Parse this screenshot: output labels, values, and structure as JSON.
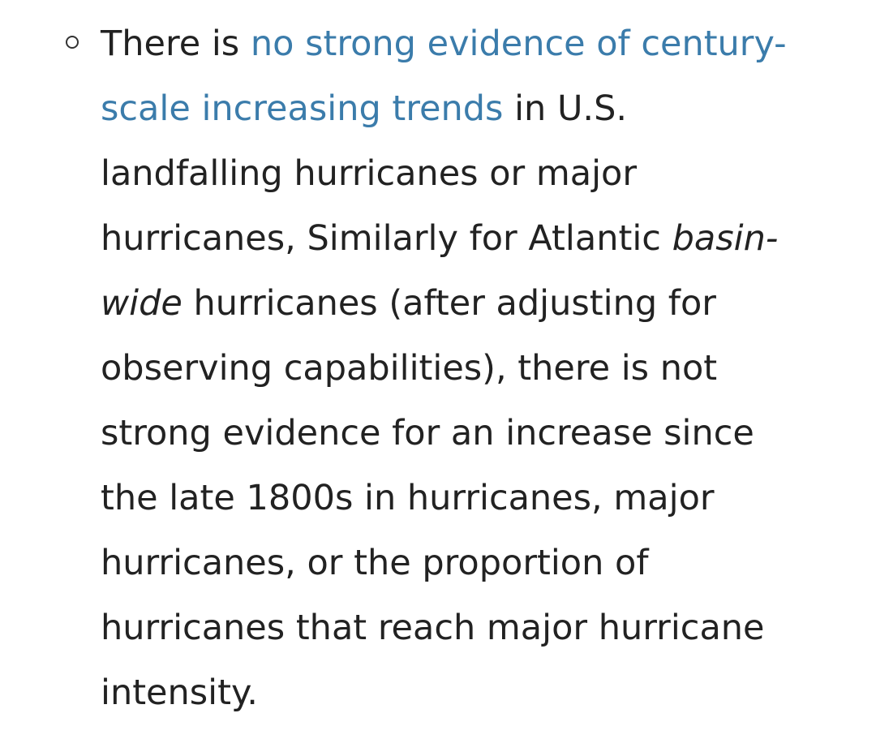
{
  "bullet": {
    "lines": [
      [
        {
          "text": "There is ",
          "kind": "plain"
        },
        {
          "text": "no strong evidence of century-",
          "kind": "link"
        }
      ],
      [
        {
          "text": "scale increasing trends",
          "kind": "link"
        },
        {
          "text": " in U.S.",
          "kind": "plain"
        }
      ],
      [
        {
          "text": "landfalling hurricanes or major",
          "kind": "plain"
        }
      ],
      [
        {
          "text": "hurricanes, Similarly for Atlantic ",
          "kind": "plain"
        },
        {
          "text": "basin-",
          "kind": "italic"
        }
      ],
      [
        {
          "text": "wide",
          "kind": "italic"
        },
        {
          "text": " hurricanes (after adjusting for",
          "kind": "plain"
        }
      ],
      [
        {
          "text": "observing capabilities), there is not",
          "kind": "plain"
        }
      ],
      [
        {
          "text": "strong evidence for an increase since",
          "kind": "plain"
        }
      ],
      [
        {
          "text": "the late 1800s in hurricanes, major",
          "kind": "plain"
        }
      ],
      [
        {
          "text": "hurricanes, or the proportion of",
          "kind": "plain"
        }
      ],
      [
        {
          "text": "hurricanes that reach major hurricane",
          "kind": "plain"
        }
      ],
      [
        {
          "text": "intensity.",
          "kind": "plain"
        }
      ]
    ]
  }
}
